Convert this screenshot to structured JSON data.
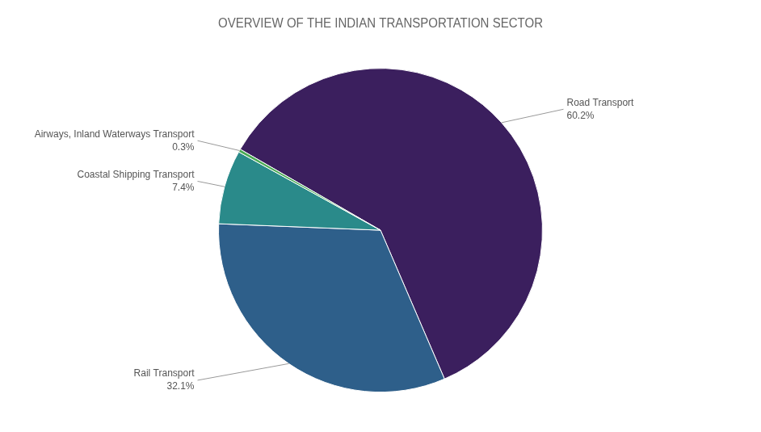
{
  "chart_data": {
    "type": "pie",
    "title": "OVERVIEW OF THE INDIAN TRANSPORTATION SECTOR",
    "categories": [
      "Road Transport",
      "Rail Transport",
      "Coastal Shipping Transport",
      "Airways, Inland Waterways Transport"
    ],
    "values": [
      60.2,
      32.1,
      7.4,
      0.3
    ],
    "value_labels": [
      "60.2%",
      "32.1%",
      "7.4%",
      "0.3%"
    ],
    "colors": [
      "#3b1f5e",
      "#2e5f8a",
      "#2a8a8a",
      "#4aaa55"
    ],
    "data_labels": true
  }
}
